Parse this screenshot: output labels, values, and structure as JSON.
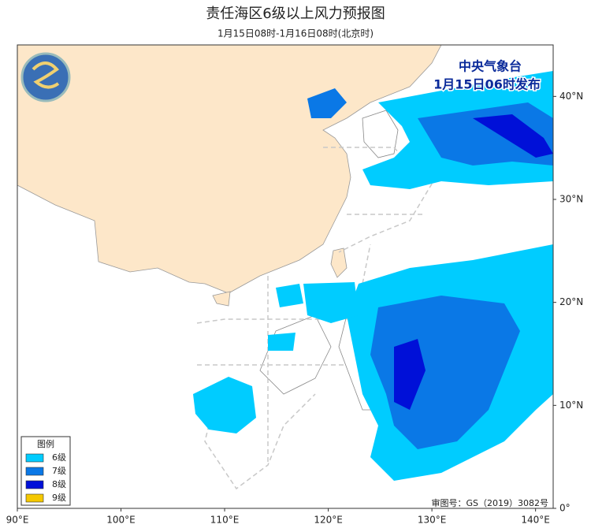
{
  "header": {
    "title": "责任海区6级以上风力预报图",
    "subtitle": "1月15日08时-1月16日08时(北京时)"
  },
  "stamp": {
    "agency": "中央气象台",
    "issued": "1月15日06时发布"
  },
  "approval": "审图号：GS（2019）3082号",
  "map": {
    "lon_range": [
      90,
      141.7
    ],
    "lat_range": [
      0,
      45
    ],
    "lon_ticks": [
      {
        "value": 90,
        "label": "90°E"
      },
      {
        "value": 100,
        "label": "100°E"
      },
      {
        "value": 110,
        "label": "110°E"
      },
      {
        "value": 120,
        "label": "120°E"
      },
      {
        "value": 130,
        "label": "130°E"
      },
      {
        "value": 140,
        "label": "140°E"
      }
    ],
    "lat_ticks": [
      {
        "value": 0,
        "label": "0°"
      },
      {
        "value": 10,
        "label": "10°N"
      },
      {
        "value": 20,
        "label": "20°N"
      },
      {
        "value": 30,
        "label": "30°N"
      },
      {
        "value": 40,
        "label": "40°N"
      }
    ]
  },
  "legend": {
    "title": "图例",
    "items": [
      {
        "name": "6级",
        "color": "#00ccff"
      },
      {
        "name": "7级",
        "color": "#0a78e6"
      },
      {
        "name": "8级",
        "color": "#0010d8"
      },
      {
        "name": "9级",
        "color": "#f5c800"
      }
    ]
  }
}
